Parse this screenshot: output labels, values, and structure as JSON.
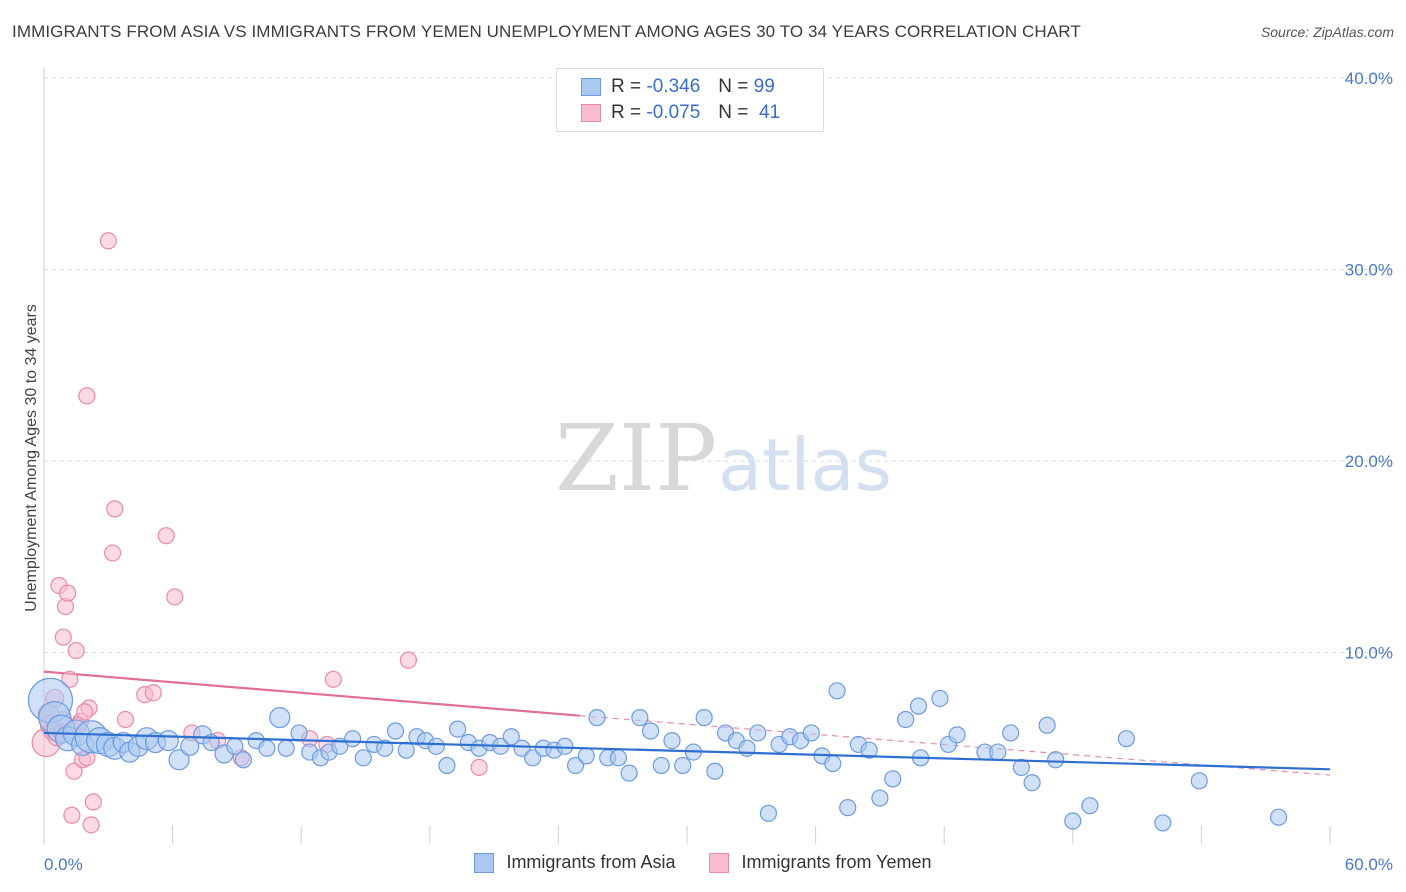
{
  "title": "IMMIGRANTS FROM ASIA VS IMMIGRANTS FROM YEMEN UNEMPLOYMENT AMONG AGES 30 TO 34 YEARS CORRELATION CHART",
  "source": "Source: ZipAtlas.com",
  "watermark": {
    "zip": "ZIP",
    "atlas": "atlas"
  },
  "colors": {
    "asia_fill": "#aac8f0",
    "asia_stroke": "#6d9be0",
    "asia_line": "#2e6fd0",
    "yemen_fill": "#f7bcd0",
    "yemen_stroke": "#e88aa8",
    "yemen_line": "#e0709a",
    "accent_text": "#4a78c8"
  },
  "legend": {
    "rows": [
      {
        "r_label": "R =",
        "r_value": "-0.346",
        "n_label": "N =",
        "n_value": "99"
      },
      {
        "r_label": "R =",
        "r_value": "-0.075",
        "n_label": "N =",
        "n_value": "41"
      }
    ]
  },
  "chart_data": {
    "type": "scatter",
    "title": "IMMIGRANTS FROM ASIA VS IMMIGRANTS FROM YEMEN UNEMPLOYMENT AMONG AGES 30 TO 34 YEARS CORRELATION CHART",
    "xlabel": "",
    "ylabel": "Unemployment Among Ages 30 to 34 years",
    "xlim": [
      0,
      60
    ],
    "ylim": [
      0,
      40
    ],
    "x_tick_labels": [
      "0.0%",
      "60.0%"
    ],
    "y_ticks": [
      10,
      20,
      30,
      40
    ],
    "y_tick_labels": [
      "10.0%",
      "20.0%",
      "30.0%",
      "40.0%"
    ],
    "grid": "horizontal dashed",
    "legend_position": "top-center",
    "series": [
      {
        "name": "Immigrants from Asia",
        "points": [
          [
            0.3,
            7.5,
            2.2
          ],
          [
            0.5,
            6.6,
            1.6
          ],
          [
            0.8,
            6.0,
            1.4
          ],
          [
            1.1,
            5.5,
            1.2
          ],
          [
            1.5,
            5.8,
            1.3
          ],
          [
            1.8,
            5.2,
            1.1
          ],
          [
            2.2,
            5.6,
            1.6
          ],
          [
            2.6,
            5.4,
            1.3
          ],
          [
            3.0,
            5.2,
            1.2
          ],
          [
            3.3,
            5.0,
            1.1
          ],
          [
            3.7,
            5.3,
            1.0
          ],
          [
            4.0,
            4.8,
            1.0
          ],
          [
            4.4,
            5.1,
            1.0
          ],
          [
            4.8,
            5.5,
            1.1
          ],
          [
            5.2,
            5.3,
            1.0
          ],
          [
            5.8,
            5.4,
            1.0
          ],
          [
            6.3,
            4.4,
            1.0
          ],
          [
            6.8,
            5.1,
            0.9
          ],
          [
            7.4,
            5.7,
            0.9
          ],
          [
            7.8,
            5.3,
            0.8
          ],
          [
            8.4,
            4.7,
            0.9
          ],
          [
            8.9,
            5.1,
            0.8
          ],
          [
            9.3,
            4.4,
            0.8
          ],
          [
            9.9,
            5.4,
            0.8
          ],
          [
            10.4,
            5.0,
            0.8
          ],
          [
            11.0,
            6.6,
            1.0
          ],
          [
            11.3,
            5.0,
            0.8
          ],
          [
            11.9,
            5.8,
            0.8
          ],
          [
            12.4,
            4.8,
            0.8
          ],
          [
            12.9,
            4.5,
            0.8
          ],
          [
            13.3,
            4.8,
            0.8
          ],
          [
            13.8,
            5.1,
            0.8
          ],
          [
            14.4,
            5.5,
            0.8
          ],
          [
            14.9,
            4.5,
            0.8
          ],
          [
            15.4,
            5.2,
            0.8
          ],
          [
            15.9,
            5.0,
            0.8
          ],
          [
            16.4,
            5.9,
            0.8
          ],
          [
            16.9,
            4.9,
            0.8
          ],
          [
            17.4,
            5.6,
            0.8
          ],
          [
            17.8,
            5.4,
            0.8
          ],
          [
            18.3,
            5.1,
            0.8
          ],
          [
            18.8,
            4.1,
            0.8
          ],
          [
            19.3,
            6.0,
            0.8
          ],
          [
            19.8,
            5.3,
            0.8
          ],
          [
            20.3,
            5.0,
            0.8
          ],
          [
            20.8,
            5.3,
            0.8
          ],
          [
            21.3,
            5.1,
            0.8
          ],
          [
            21.8,
            5.6,
            0.8
          ],
          [
            22.3,
            5.0,
            0.8
          ],
          [
            22.8,
            4.5,
            0.8
          ],
          [
            23.3,
            5.0,
            0.8
          ],
          [
            23.8,
            4.9,
            0.8
          ],
          [
            24.3,
            5.1,
            0.8
          ],
          [
            24.8,
            4.1,
            0.8
          ],
          [
            25.3,
            4.6,
            0.8
          ],
          [
            25.8,
            6.6,
            0.8
          ],
          [
            26.3,
            4.5,
            0.8
          ],
          [
            26.8,
            4.5,
            0.8
          ],
          [
            27.3,
            3.7,
            0.8
          ],
          [
            27.8,
            6.6,
            0.8
          ],
          [
            28.3,
            5.9,
            0.8
          ],
          [
            28.8,
            4.1,
            0.8
          ],
          [
            29.3,
            5.4,
            0.8
          ],
          [
            29.8,
            4.1,
            0.8
          ],
          [
            30.3,
            4.8,
            0.8
          ],
          [
            30.8,
            6.6,
            0.8
          ],
          [
            31.3,
            3.8,
            0.8
          ],
          [
            31.8,
            5.8,
            0.8
          ],
          [
            32.3,
            5.4,
            0.8
          ],
          [
            32.8,
            5.0,
            0.8
          ],
          [
            33.3,
            5.8,
            0.8
          ],
          [
            33.8,
            1.6,
            0.8
          ],
          [
            34.3,
            5.2,
            0.8
          ],
          [
            34.8,
            5.6,
            0.8
          ],
          [
            35.3,
            5.4,
            0.8
          ],
          [
            35.8,
            5.8,
            0.8
          ],
          [
            36.3,
            4.6,
            0.8
          ],
          [
            36.8,
            4.2,
            0.8
          ],
          [
            37.0,
            8.0,
            0.8
          ],
          [
            37.5,
            1.9,
            0.8
          ],
          [
            38.0,
            5.2,
            0.8
          ],
          [
            38.5,
            4.9,
            0.8
          ],
          [
            39.0,
            2.4,
            0.8
          ],
          [
            39.6,
            3.4,
            0.8
          ],
          [
            40.2,
            6.5,
            0.8
          ],
          [
            40.8,
            7.2,
            0.8
          ],
          [
            40.9,
            4.5,
            0.8
          ],
          [
            41.8,
            7.6,
            0.8
          ],
          [
            42.2,
            5.2,
            0.8
          ],
          [
            42.6,
            5.7,
            0.8
          ],
          [
            43.9,
            4.8,
            0.8
          ],
          [
            44.5,
            4.8,
            0.8
          ],
          [
            45.1,
            5.8,
            0.8
          ],
          [
            45.6,
            4.0,
            0.8
          ],
          [
            46.1,
            3.2,
            0.8
          ],
          [
            46.8,
            6.2,
            0.8
          ],
          [
            47.2,
            4.4,
            0.8
          ],
          [
            48.0,
            1.2,
            0.8
          ],
          [
            48.8,
            2.0,
            0.8
          ],
          [
            50.5,
            5.5,
            0.8
          ],
          [
            52.2,
            1.1,
            0.8
          ],
          [
            53.9,
            3.3,
            0.8
          ],
          [
            57.6,
            1.4,
            0.8
          ]
        ],
        "trend": {
          "x": [
            0,
            60
          ],
          "y": [
            5.8,
            3.9
          ]
        }
      },
      {
        "name": "Immigrants from Yemen",
        "points": [
          [
            0.1,
            5.3,
            1.4
          ],
          [
            0.2,
            6.8,
            1.0
          ],
          [
            0.3,
            6.2,
            1.0
          ],
          [
            0.4,
            5.9,
            0.9
          ],
          [
            0.5,
            7.6,
            0.9
          ],
          [
            0.6,
            5.6,
            0.9
          ],
          [
            0.7,
            13.5,
            0.8
          ],
          [
            0.8,
            5.8,
            0.8
          ],
          [
            0.9,
            10.8,
            0.8
          ],
          [
            1.0,
            12.4,
            0.8
          ],
          [
            1.1,
            13.1,
            0.8
          ],
          [
            1.2,
            8.6,
            0.8
          ],
          [
            1.3,
            1.5,
            0.8
          ],
          [
            1.4,
            3.8,
            0.8
          ],
          [
            1.5,
            10.1,
            0.8
          ],
          [
            1.7,
            6.4,
            0.8
          ],
          [
            1.8,
            4.4,
            0.8
          ],
          [
            2.0,
            4.5,
            0.8
          ],
          [
            2.1,
            7.1,
            0.8
          ],
          [
            2.0,
            23.4,
            0.8
          ],
          [
            2.2,
            1.0,
            0.8
          ],
          [
            2.3,
            2.2,
            0.8
          ],
          [
            3.0,
            31.5,
            0.8
          ],
          [
            3.2,
            15.2,
            0.8
          ],
          [
            3.3,
            17.5,
            0.8
          ],
          [
            3.8,
            6.5,
            0.8
          ],
          [
            4.7,
            7.8,
            0.8
          ],
          [
            5.1,
            7.9,
            0.8
          ],
          [
            5.7,
            16.1,
            0.8
          ],
          [
            6.1,
            12.9,
            0.8
          ],
          [
            6.9,
            5.8,
            0.8
          ],
          [
            8.1,
            5.4,
            0.8
          ],
          [
            9.2,
            4.5,
            0.8
          ],
          [
            12.4,
            5.5,
            0.8
          ],
          [
            13.2,
            5.2,
            0.8
          ],
          [
            13.5,
            8.6,
            0.8
          ],
          [
            17.0,
            9.6,
            0.8
          ],
          [
            20.3,
            4.0,
            0.8
          ],
          [
            1.6,
            6.2,
            0.8
          ],
          [
            0.9,
            6.5,
            0.8
          ],
          [
            1.9,
            6.9,
            0.8
          ]
        ],
        "trend": {
          "x": [
            0,
            25
          ],
          "y": [
            9.0,
            6.7
          ],
          "dashed_extension": {
            "x": [
              25,
              60
            ],
            "y": [
              6.7,
              3.6
            ]
          }
        }
      }
    ]
  },
  "bottom_legend": [
    {
      "label": "Immigrants from Asia"
    },
    {
      "label": "Immigrants from Yemen"
    }
  ]
}
